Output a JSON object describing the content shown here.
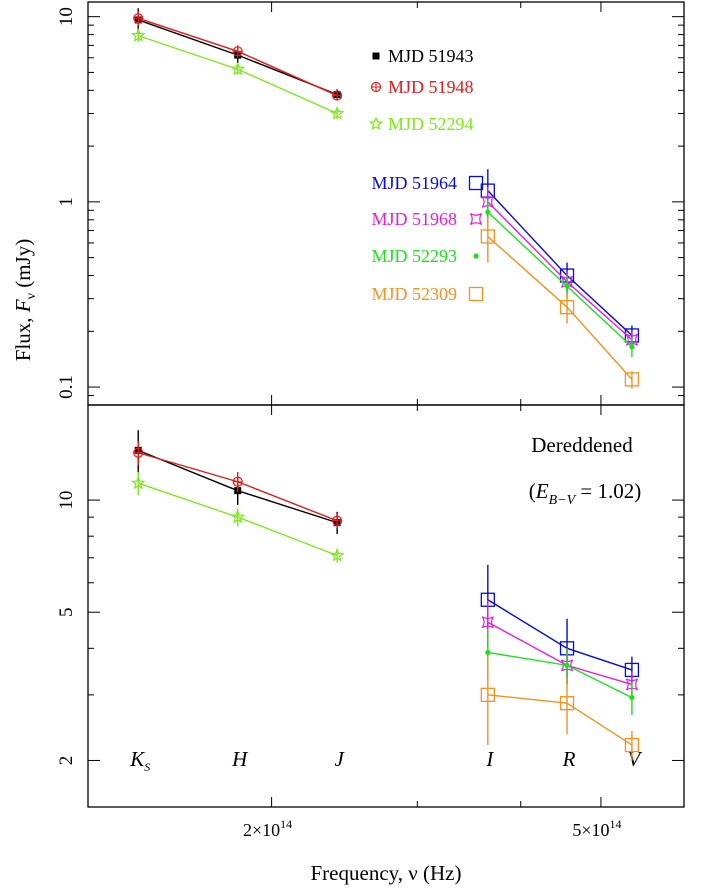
{
  "chart_data": {
    "type": "scatter",
    "xlabel": "Frequency, ν (Hz)",
    "ylabel": "Flux, F_ν (mJy)",
    "ylabel_parts": {
      "prefix": "Flux,  ",
      "var": "F",
      "sub": "ν",
      "suffix": "  (mJy)"
    },
    "xscale": "log",
    "xlim": [
      120000000000000.0,
      630000000000000.0
    ],
    "xticks": [
      {
        "value": 200000000000000.0,
        "label": "2×10",
        "exp": "14"
      },
      {
        "value": 500000000000000.0,
        "label": "5×10",
        "exp": "14"
      }
    ],
    "xminor_ticks": [
      300000000000000.0,
      400000000000000.0
    ],
    "bands": [
      {
        "name": "K",
        "sub": "S",
        "freq": 138000000000000.0
      },
      {
        "name": "H",
        "sub": "",
        "freq": 182000000000000.0
      },
      {
        "name": "J",
        "sub": "",
        "freq": 240000000000000.0
      },
      {
        "name": "I",
        "sub": "",
        "freq": 365000000000000.0
      },
      {
        "name": "R",
        "sub": "",
        "freq": 455000000000000.0
      },
      {
        "name": "V",
        "sub": "",
        "freq": 545000000000000.0
      }
    ],
    "panels": [
      {
        "id": "observed",
        "yscale": "log",
        "ylim": [
          0.08,
          12
        ],
        "yticks": [
          {
            "value": 0.1,
            "label": "0.1"
          },
          {
            "value": 1,
            "label": "1"
          },
          {
            "value": 10,
            "label": "10"
          }
        ],
        "annotation": [],
        "series": [
          {
            "name": "MJD 51943",
            "color": "#000000",
            "marker": "square-small",
            "x": [
              138000000000000.0,
              182000000000000.0,
              240000000000000.0
            ],
            "y": [
              9.6,
              6.2,
              3.8
            ],
            "err": [
              1.5,
              0.6,
              0.25
            ]
          },
          {
            "name": "MJD 51948",
            "color": "#e41a1c",
            "marker": "circle-plus",
            "x": [
              138000000000000.0,
              182000000000000.0,
              240000000000000.0
            ],
            "y": [
              9.8,
              6.5,
              3.75
            ],
            "err": [
              0.9,
              0.5,
              0.2
            ]
          },
          {
            "name": "MJD 52294",
            "color": "#7fe81a",
            "marker": "star",
            "x": [
              138000000000000.0,
              182000000000000.0,
              240000000000000.0
            ],
            "y": [
              7.9,
              5.2,
              3.0
            ],
            "err": [
              0.6,
              0.35,
              0.2
            ]
          },
          {
            "name": "MJD 51964",
            "color": "#0a0ad6",
            "marker": "square-open",
            "x": [
              365000000000000.0,
              455000000000000.0,
              545000000000000.0
            ],
            "y": [
              1.15,
              0.4,
              0.19
            ],
            "err": [
              0.35,
              0.07,
              0.025
            ]
          },
          {
            "name": "MJD 51968",
            "color": "#e020e0",
            "marker": "star4",
            "x": [
              365000000000000.0,
              455000000000000.0,
              545000000000000.0
            ],
            "y": [
              1.0,
              0.37,
              0.18
            ],
            "err": [
              0.2,
              0.05,
              0.02
            ]
          },
          {
            "name": "MJD 52293",
            "color": "#1ce01c",
            "marker": "dot",
            "x": [
              365000000000000.0,
              455000000000000.0,
              545000000000000.0
            ],
            "y": [
              0.88,
              0.35,
              0.165
            ],
            "err": [
              0.15,
              0.05,
              0.02
            ]
          },
          {
            "name": "MJD 52309",
            "color": "#f5921e",
            "marker": "square-open",
            "x": [
              365000000000000.0,
              455000000000000.0,
              545000000000000.0
            ],
            "y": [
              0.65,
              0.27,
              0.11
            ],
            "err": [
              0.18,
              0.05,
              0.012
            ]
          }
        ]
      },
      {
        "id": "dereddened",
        "yscale": "log",
        "ylim": [
          1.5,
          18
        ],
        "yticks": [
          {
            "value": 2,
            "label": "2"
          },
          {
            "value": 5,
            "label": "5"
          },
          {
            "value": 10,
            "label": "10"
          }
        ],
        "annotation": [
          "Dereddened",
          "(E_B−V = 1.02)"
        ],
        "annotation_parts": {
          "title": "Dereddened",
          "open": "(",
          "var": "E",
          "sub": "B−V",
          "eq": " = 1.02)"
        },
        "series": [
          {
            "name": "MJD 51943",
            "color": "#000000",
            "marker": "square-small",
            "x": [
              138000000000000.0,
              182000000000000.0,
              240000000000000.0
            ],
            "y": [
              13.6,
              10.6,
              8.7
            ],
            "err": [
              1.8,
              0.9,
              0.6
            ]
          },
          {
            "name": "MJD 51948",
            "color": "#e41a1c",
            "marker": "circle-plus",
            "x": [
              138000000000000.0,
              182000000000000.0,
              240000000000000.0
            ],
            "y": [
              13.4,
              11.2,
              8.8
            ],
            "err": [
              1.0,
              0.7,
              0.4
            ]
          },
          {
            "name": "MJD 52294",
            "color": "#7fe81a",
            "marker": "star",
            "x": [
              138000000000000.0,
              182000000000000.0,
              240000000000000.0
            ],
            "y": [
              11.1,
              9.0,
              7.1
            ],
            "err": [
              0.8,
              0.5,
              0.3
            ]
          },
          {
            "name": "MJD 51964",
            "color": "#0a0ad6",
            "marker": "square-open",
            "x": [
              365000000000000.0,
              455000000000000.0,
              545000000000000.0
            ],
            "y": [
              5.4,
              4.0,
              3.5
            ],
            "err": [
              1.3,
              0.8,
              0.3
            ]
          },
          {
            "name": "MJD 51968",
            "color": "#e020e0",
            "marker": "star4",
            "x": [
              365000000000000.0,
              455000000000000.0,
              545000000000000.0
            ],
            "y": [
              4.7,
              3.6,
              3.2
            ],
            "err": [
              0.7,
              0.4,
              0.25
            ]
          },
          {
            "name": "MJD 52293",
            "color": "#1ce01c",
            "marker": "dot",
            "x": [
              365000000000000.0,
              455000000000000.0,
              545000000000000.0
            ],
            "y": [
              3.9,
              3.6,
              2.95
            ],
            "err": [
              0.6,
              0.4,
              0.3
            ]
          },
          {
            "name": "MJD 52309",
            "color": "#f5921e",
            "marker": "square-open",
            "x": [
              365000000000000.0,
              455000000000000.0,
              545000000000000.0
            ],
            "y": [
              3.0,
              2.85,
              2.2
            ],
            "err": [
              0.8,
              0.5,
              0.2
            ]
          }
        ]
      }
    ],
    "legend": {
      "left_group": [
        "MJD 51943",
        "MJD 51948",
        "MJD 52294"
      ],
      "right_group": [
        "MJD 51964",
        "MJD 51968",
        "MJD 52293",
        "MJD 52309"
      ],
      "placement": "inside top panel"
    }
  }
}
